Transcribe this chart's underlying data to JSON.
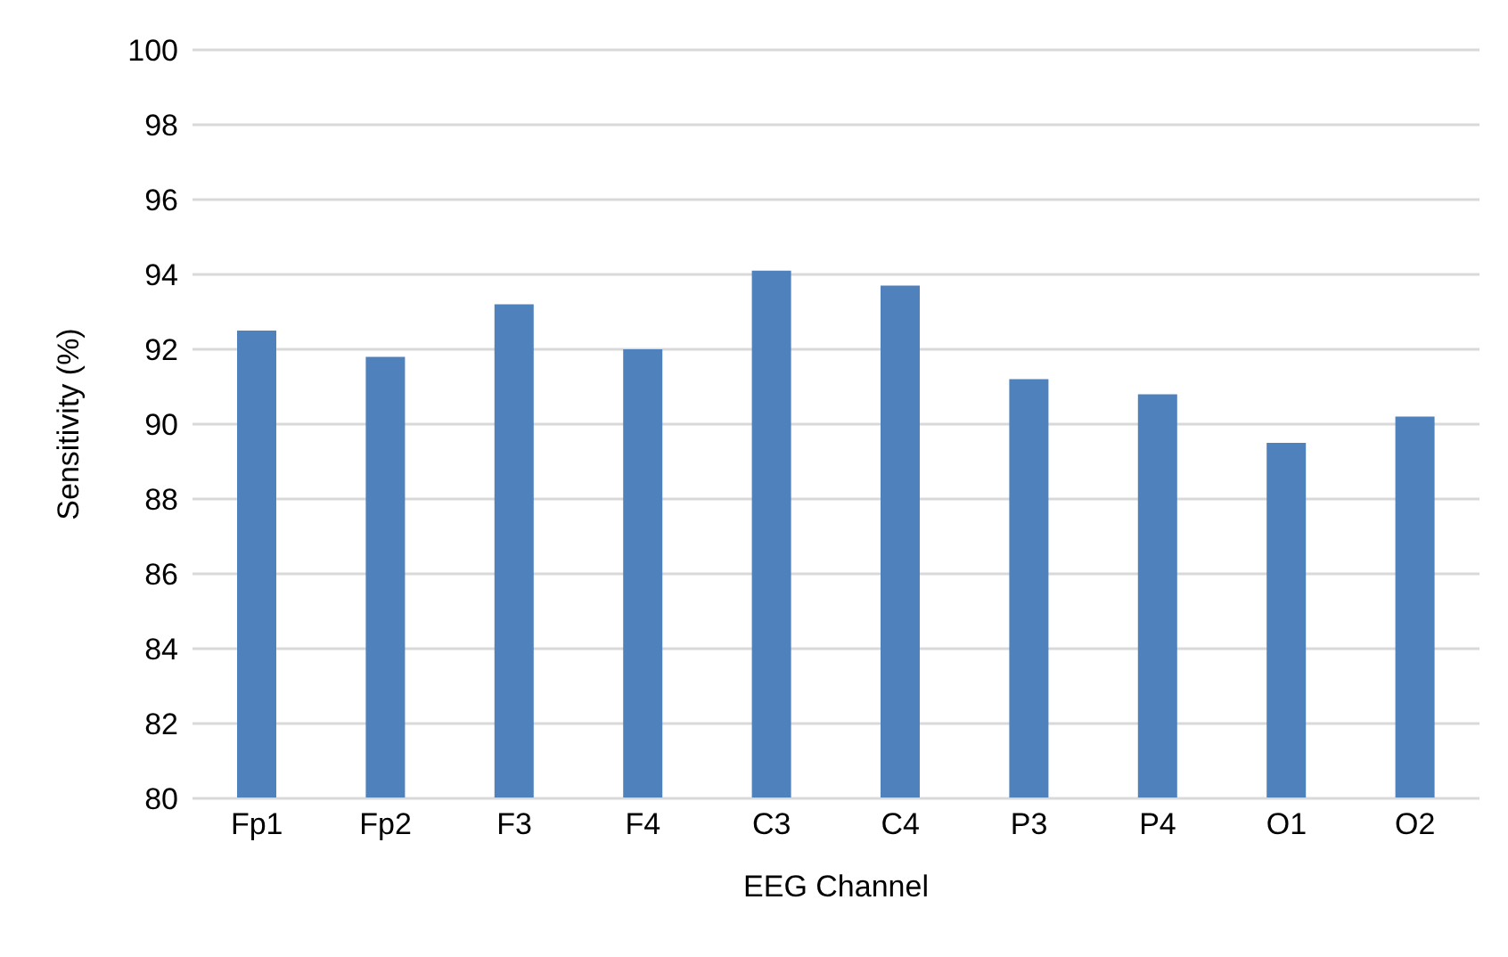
{
  "chart_data": {
    "type": "bar",
    "xlabel": "EEG Channel",
    "ylabel": "Sensitivity (%)",
    "categories": [
      "Fp1",
      "Fp2",
      "F3",
      "F4",
      "C3",
      "C4",
      "P3",
      "P4",
      "O1",
      "O2"
    ],
    "values": [
      92.5,
      91.8,
      93.2,
      92.0,
      94.1,
      93.7,
      91.2,
      90.8,
      89.5,
      90.2
    ],
    "color": "#4f81bd",
    "ylim": [
      80,
      100
    ],
    "yticks": [
      80,
      82,
      84,
      86,
      88,
      90,
      92,
      94,
      96,
      98,
      100
    ],
    "grid": "y",
    "legend": false
  }
}
